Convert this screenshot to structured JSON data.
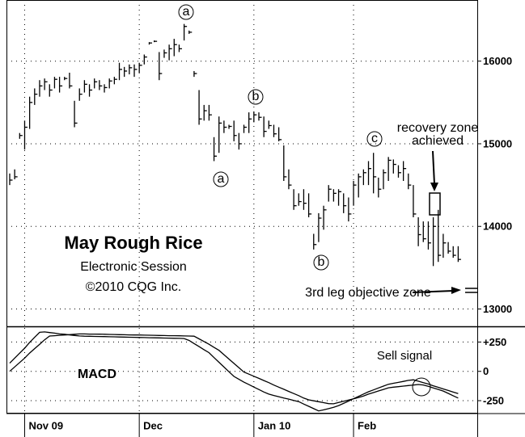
{
  "chart_data": [
    {
      "type": "hlc",
      "title": "May Rough Rice",
      "subtitle": "Electronic Session",
      "note": "©2010 CQG Inc.",
      "annotations": [
        "a",
        "b",
        "a",
        "c",
        "b",
        "recovery zone",
        "achieved",
        "3rd leg objective zone"
      ],
      "color": "#000000",
      "grid": true,
      "ylim": [
        12800,
        16740
      ],
      "yticks": [
        16000,
        15000,
        14000,
        13000
      ],
      "high": [
        14640,
        14690,
        15130,
        15280,
        15570,
        15670,
        15770,
        15790,
        15720,
        15810,
        15810,
        15810,
        15860,
        15520,
        15670,
        15770,
        15720,
        15790,
        15770,
        15720,
        15790,
        15810,
        15980,
        15930,
        15960,
        15960,
        15980,
        16080,
        16230,
        16250,
        16110,
        16140,
        16200,
        16270,
        16200,
        16450,
        16370,
        15880,
        15650,
        15470,
        15470,
        15080,
        15330,
        15280,
        15230,
        15280,
        15130,
        15230,
        15380,
        15390,
        15380,
        15330,
        15280,
        15230,
        15200,
        14980,
        14690,
        14450,
        14400,
        14450,
        14400,
        13910,
        14160,
        14250,
        14500,
        14450,
        14450,
        14400,
        14350,
        14550,
        14640,
        14690,
        14790,
        14890,
        14590,
        14690,
        14840,
        14810,
        14740,
        14790,
        14640,
        14500,
        14110,
        14060,
        14060,
        14110,
        14200,
        13910,
        13810,
        13760,
        13760
      ],
      "low": [
        14500,
        14570,
        15060,
        14930,
        15180,
        15470,
        15570,
        15650,
        15570,
        15670,
        15620,
        15770,
        15670,
        15200,
        15520,
        15620,
        15570,
        15670,
        15650,
        15620,
        15670,
        15720,
        15770,
        15810,
        15840,
        15810,
        15860,
        15960,
        16200,
        16230,
        15770,
        16040,
        16010,
        16060,
        16110,
        16250,
        16330,
        15810,
        15230,
        15280,
        15280,
        14790,
        14890,
        15130,
        15180,
        15030,
        14930,
        15130,
        15130,
        15260,
        15280,
        15080,
        15180,
        15080,
        15030,
        14550,
        14450,
        14200,
        14250,
        14200,
        14110,
        13720,
        13810,
        13960,
        14300,
        14300,
        14250,
        14160,
        14060,
        14250,
        14350,
        14500,
        14500,
        14400,
        14350,
        14450,
        14550,
        14640,
        14590,
        14550,
        14450,
        14110,
        13760,
        13810,
        13720,
        13520,
        13570,
        13620,
        13670,
        13620,
        13570
      ],
      "close": [
        14560,
        14600,
        15100,
        15200,
        15500,
        15600,
        15700,
        15750,
        15650,
        15780,
        15700,
        15790,
        15700,
        15250,
        15600,
        15720,
        15650,
        15750,
        15700,
        15680,
        15760,
        15780,
        15900,
        15880,
        15920,
        15900,
        15950,
        16050,
        16220,
        16240,
        15850,
        16100,
        16150,
        16200,
        16150,
        16420,
        16350,
        15850,
        15300,
        15400,
        15350,
        14850,
        15250,
        15200,
        15210,
        15100,
        15000,
        15200,
        15300,
        15350,
        15320,
        15150,
        15220,
        15120,
        15050,
        14600,
        14500,
        14250,
        14300,
        14280,
        14150,
        13780,
        14100,
        14200,
        14450,
        14400,
        14420,
        14250,
        14150,
        14500,
        14600,
        14650,
        14700,
        14600,
        14450,
        14650,
        14800,
        14750,
        14650,
        14700,
        14500,
        14150,
        13900,
        13850,
        13800,
        14000,
        13650,
        13800,
        13700,
        13650,
        13600
      ]
    },
    {
      "type": "line",
      "title": "MACD",
      "annotations": [
        "Sell signal"
      ],
      "grid": true,
      "categories": [
        null,
        null,
        null,
        "Nov 09",
        null,
        null,
        null,
        null,
        null,
        null,
        null,
        null,
        null,
        null,
        null,
        null,
        null,
        null,
        null,
        null,
        null,
        null,
        null,
        null,
        null,
        null,
        "Dec",
        null,
        null,
        null,
        null,
        null,
        null,
        null,
        null,
        null,
        null,
        null,
        null,
        null,
        null,
        null,
        null,
        null,
        null,
        null,
        null,
        null,
        null,
        "Jan 10",
        null,
        null,
        null,
        null,
        null,
        null,
        null,
        null,
        null,
        null,
        null,
        null,
        null,
        null,
        null,
        null,
        null,
        null,
        null,
        "Feb",
        null,
        null,
        null,
        null,
        null,
        null,
        null,
        null,
        null,
        null,
        null,
        null,
        null,
        null,
        null,
        null,
        null,
        null,
        null,
        null,
        null
      ],
      "ylim": [
        -360,
        370
      ],
      "yticks": [
        {
          "value": 250,
          "label": "+250"
        },
        0,
        -250
      ],
      "series": [
        {
          "color": "#000000",
          "values": [
            70,
            113,
            155,
            198,
            247,
            290,
            333,
            336,
            331,
            326,
            319,
            316,
            311,
            306,
            302,
            300,
            299,
            298,
            297,
            296,
            295,
            294,
            293,
            292,
            291,
            290,
            289,
            288,
            287,
            286,
            285,
            284,
            283,
            282,
            281,
            280,
            263,
            237,
            211,
            185,
            159,
            117,
            77,
            37,
            -3,
            -43,
            -68,
            -92,
            -113,
            -134,
            -155,
            -176,
            -194,
            -206,
            -216,
            -227,
            -237,
            -248,
            -258,
            -279,
            -298,
            -318,
            -337,
            -328,
            -318,
            -306,
            -292,
            -273,
            -253,
            -233,
            -213,
            -193,
            -174,
            -158,
            -142,
            -126,
            -110,
            -102,
            -94,
            -86,
            -77,
            -72,
            -84,
            -96,
            -108,
            -123,
            -136,
            -150,
            -163,
            -177,
            -190
          ]
        },
        {
          "color": "#000000",
          "values": [
            0,
            38,
            75,
            113,
            156,
            194,
            231,
            269,
            301,
            304,
            307,
            310,
            313,
            316,
            319,
            319,
            318,
            318,
            317,
            316,
            315,
            314,
            313,
            312,
            311,
            310,
            310,
            309,
            308,
            307,
            306,
            305,
            304,
            304,
            303,
            302,
            301,
            300,
            277,
            254,
            231,
            204,
            179,
            142,
            105,
            68,
            31,
            -6,
            -24,
            -42,
            -60,
            -78,
            -96,
            -117,
            -135,
            -153,
            -171,
            -189,
            -207,
            -228,
            -243,
            -251,
            -259,
            -267,
            -275,
            -277,
            -265,
            -255,
            -245,
            -235,
            -223,
            -210,
            -194,
            -181,
            -167,
            -154,
            -140,
            -135,
            -131,
            -126,
            -121,
            -117,
            -112,
            -116,
            -128,
            -142,
            -154,
            -168,
            -188,
            -208,
            -228
          ]
        }
      ]
    }
  ]
}
